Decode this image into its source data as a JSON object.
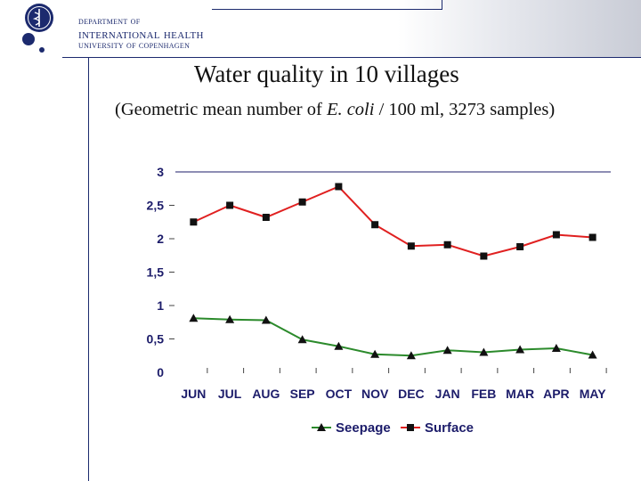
{
  "header": {
    "department_line1": "department of",
    "department_line2": "international health",
    "department_line3": "university of copenhagen"
  },
  "slide": {
    "title": "Water quality in 10 villages",
    "subtitle_prefix": "(Geometric mean number of ",
    "subtitle_italic": "E. coli",
    "subtitle_suffix": " / 100 ml, 3273 samples)"
  },
  "colors": {
    "navy": "#1c2a6e",
    "seepage": "#2b8a2b",
    "surface": "#e02020",
    "axis_text": "#1c1c6a"
  },
  "chart_data": {
    "type": "line",
    "categories": [
      "JUN",
      "JUL",
      "AUG",
      "SEP",
      "OCT",
      "NOV",
      "DEC",
      "JAN",
      "FEB",
      "MAR",
      "APR",
      "MAY"
    ],
    "y_tick_labels": [
      "0",
      "0,5",
      "1",
      "1,5",
      "2",
      "2,5",
      "3"
    ],
    "ylim": [
      0,
      3
    ],
    "series": [
      {
        "name": "Seepage",
        "marker": "triangle",
        "color": "#2b8a2b",
        "values": [
          0.81,
          0.79,
          0.78,
          0.49,
          0.39,
          0.27,
          0.25,
          0.33,
          0.3,
          0.34,
          0.36,
          0.26
        ]
      },
      {
        "name": "Surface",
        "marker": "square",
        "color": "#e02020",
        "values": [
          2.25,
          2.5,
          2.32,
          2.55,
          2.78,
          2.21,
          1.89,
          1.91,
          1.74,
          1.88,
          2.06,
          2.02
        ]
      }
    ],
    "legend_position": "bottom"
  }
}
